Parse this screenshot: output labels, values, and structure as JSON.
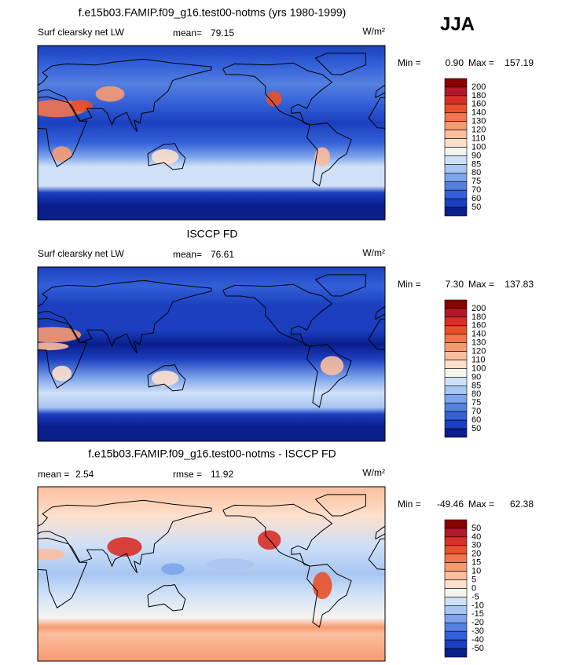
{
  "season": "JJA",
  "chart_data": [
    {
      "type": "contour-map",
      "title": "f.e15b03.FAMIP.f09_g16.test00-notms (yrs 1980-1999)",
      "subtitle": "Surf clearsky net LW",
      "stats": [
        {
          "label": "mean=",
          "value": "79.15"
        }
      ],
      "units": "W/m²",
      "range": {
        "min_label": "Min =",
        "min": "0.90",
        "max_label": "Max =",
        "max": "157.19"
      },
      "levels": [
        200,
        180,
        160,
        140,
        130,
        120,
        110,
        100,
        90,
        85,
        80,
        75,
        70,
        60,
        50
      ],
      "colors": [
        "#8b0000",
        "#b2182b",
        "#d73027",
        "#e8502a",
        "#f4744d",
        "#f79a72",
        "#fbbe9e",
        "#fde0cc",
        "#f5f5f0",
        "#cfe0f7",
        "#a8c6f2",
        "#7ea5ec",
        "#5580e0",
        "#3360d8",
        "#1b3fbf",
        "#0a1e8c"
      ]
    },
    {
      "type": "contour-map",
      "title": "ISCCP FD",
      "subtitle": "Surf clearsky net LW",
      "stats": [
        {
          "label": "mean=",
          "value": "76.61"
        }
      ],
      "units": "W/m²",
      "range": {
        "min_label": "Min =",
        "min": "7.30",
        "max_label": "Max =",
        "max": "137.83"
      },
      "levels": [
        200,
        180,
        160,
        140,
        130,
        120,
        110,
        100,
        90,
        85,
        80,
        75,
        70,
        60,
        50
      ],
      "colors": [
        "#8b0000",
        "#b2182b",
        "#d73027",
        "#e8502a",
        "#f4744d",
        "#f79a72",
        "#fbbe9e",
        "#fde0cc",
        "#f5f5f0",
        "#cfe0f7",
        "#a8c6f2",
        "#7ea5ec",
        "#5580e0",
        "#3360d8",
        "#1b3fbf",
        "#0a1e8c"
      ]
    },
    {
      "type": "contour-map",
      "title": "f.e15b03.FAMIP.f09_g16.test00-notms - ISCCP FD",
      "stats": [
        {
          "label": "mean =",
          "value": "2.54"
        },
        {
          "label": "rmse =",
          "value": "11.92"
        }
      ],
      "units": "W/m²",
      "range": {
        "min_label": "Min =",
        "min": "-49.46",
        "max_label": "Max =",
        "max": "62.38"
      },
      "levels": [
        50,
        40,
        30,
        20,
        15,
        10,
        5,
        0,
        -5,
        -10,
        -15,
        -20,
        -30,
        -40,
        -50
      ],
      "colors": [
        "#8b0000",
        "#b2182b",
        "#d73027",
        "#e8502a",
        "#f4744d",
        "#f79a72",
        "#fbbe9e",
        "#fde0cc",
        "#f5f5f0",
        "#cfe0f7",
        "#a8c6f2",
        "#7ea5ec",
        "#5580e0",
        "#3360d8",
        "#1b3fbf",
        "#0a1e8c"
      ]
    }
  ]
}
